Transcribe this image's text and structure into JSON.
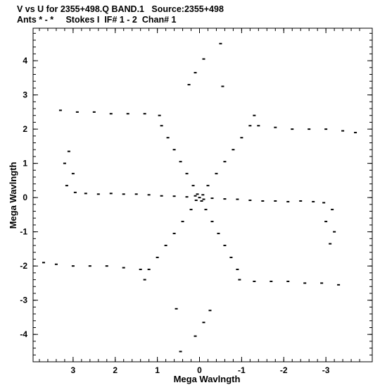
{
  "header": {
    "line1": "V vs U for 2355+498.Q BAND.1   Source:2355+498",
    "line2": "Ants * - *     Stokes I  IF# 1 - 2  Chan# 1"
  },
  "chart_data": {
    "type": "scatter",
    "title": "V vs U for 2355+498.Q BAND.1   Source:2355+498",
    "subtitle": "Ants * - *     Stokes I  IF# 1 - 2  Chan# 1",
    "xlabel": "Mega Wavlngth",
    "ylabel": "Mega Wavlngth",
    "xlim": [
      3.95,
      -4.1
    ],
    "ylim": [
      -4.8,
      4.95
    ],
    "x_reversed": true,
    "xticks": [
      3,
      2,
      1,
      0,
      -1,
      -2,
      -3
    ],
    "xticklabels": [
      "3",
      "2",
      "1",
      "0",
      "-1",
      "-2",
      "-3"
    ],
    "yticks": [
      4,
      3,
      2,
      1,
      0,
      -1,
      -2,
      -3,
      -4
    ],
    "yticklabels": [
      "4",
      "3",
      "2",
      "1",
      "0",
      "-1",
      "-2",
      "-3",
      "-4"
    ],
    "grid": false,
    "legend": "none",
    "marker_color": "#000000",
    "description_note": "uv-coverage: points lie along radial spokes and arcs; values read approximately from the plot",
    "series": [
      {
        "name": "",
        "points": [
          [
            0.0,
            0.0
          ],
          [
            0.05,
            0.1
          ],
          [
            -0.05,
            -0.1
          ],
          [
            0.1,
            0.05
          ],
          [
            -0.1,
            -0.05
          ],
          [
            0.08,
            -0.08
          ],
          [
            -0.08,
            0.08
          ],
          [
            0.3,
            0.02
          ],
          [
            0.6,
            0.04
          ],
          [
            0.9,
            0.05
          ],
          [
            1.2,
            0.08
          ],
          [
            1.5,
            0.1
          ],
          [
            1.8,
            0.1
          ],
          [
            2.1,
            0.12
          ],
          [
            2.4,
            0.1
          ],
          [
            2.7,
            0.12
          ],
          [
            2.95,
            0.15
          ],
          [
            -0.3,
            -0.02
          ],
          [
            -0.6,
            -0.04
          ],
          [
            -0.9,
            -0.05
          ],
          [
            -1.2,
            -0.08
          ],
          [
            -1.5,
            -0.1
          ],
          [
            -1.8,
            -0.1
          ],
          [
            -2.1,
            -0.12
          ],
          [
            -2.4,
            -0.1
          ],
          [
            -2.7,
            -0.12
          ],
          [
            -2.95,
            -0.15
          ],
          [
            0.15,
            0.35
          ],
          [
            0.3,
            0.7
          ],
          [
            0.45,
            1.05
          ],
          [
            0.6,
            1.4
          ],
          [
            0.75,
            1.75
          ],
          [
            0.9,
            2.1
          ],
          [
            0.95,
            2.4
          ],
          [
            -0.15,
            -0.35
          ],
          [
            -0.3,
            -0.7
          ],
          [
            -0.45,
            -1.05
          ],
          [
            -0.6,
            -1.4
          ],
          [
            -0.75,
            -1.75
          ],
          [
            -0.9,
            -2.1
          ],
          [
            -0.95,
            -2.4
          ],
          [
            -0.2,
            0.35
          ],
          [
            -0.4,
            0.7
          ],
          [
            -0.6,
            1.05
          ],
          [
            -0.8,
            1.4
          ],
          [
            -1.0,
            1.75
          ],
          [
            -1.2,
            2.1
          ],
          [
            -1.3,
            2.4
          ],
          [
            0.2,
            -0.35
          ],
          [
            0.4,
            -0.7
          ],
          [
            0.6,
            -1.05
          ],
          [
            0.8,
            -1.4
          ],
          [
            1.0,
            -1.75
          ],
          [
            1.2,
            -2.1
          ],
          [
            1.3,
            -2.4
          ],
          [
            0.1,
            3.65
          ],
          [
            -0.1,
            4.05
          ],
          [
            -0.5,
            4.5
          ],
          [
            0.25,
            3.3
          ],
          [
            -0.55,
            3.25
          ],
          [
            -0.1,
            -3.65
          ],
          [
            0.1,
            -4.05
          ],
          [
            0.45,
            -4.5
          ],
          [
            -0.25,
            -3.3
          ],
          [
            0.55,
            -3.25
          ],
          [
            3.3,
            2.55
          ],
          [
            2.9,
            2.5
          ],
          [
            2.5,
            2.5
          ],
          [
            2.1,
            2.45
          ],
          [
            1.7,
            2.45
          ],
          [
            1.3,
            2.45
          ],
          [
            -3.3,
            -2.55
          ],
          [
            -2.9,
            -2.5
          ],
          [
            -2.5,
            -2.5
          ],
          [
            -2.1,
            -2.45
          ],
          [
            -1.7,
            -2.45
          ],
          [
            -1.3,
            -2.45
          ],
          [
            -1.4,
            2.1
          ],
          [
            -1.8,
            2.05
          ],
          [
            -2.2,
            2.0
          ],
          [
            -2.6,
            2.0
          ],
          [
            -3.0,
            2.0
          ],
          [
            -3.4,
            1.95
          ],
          [
            -3.7,
            1.9
          ],
          [
            1.4,
            -2.1
          ],
          [
            1.8,
            -2.05
          ],
          [
            2.2,
            -2.0
          ],
          [
            2.6,
            -2.0
          ],
          [
            3.0,
            -2.0
          ],
          [
            3.4,
            -1.95
          ],
          [
            3.7,
            -1.9
          ],
          [
            3.1,
            1.35
          ],
          [
            3.2,
            1.0
          ],
          [
            3.0,
            0.7
          ],
          [
            3.15,
            0.35
          ],
          [
            -3.1,
            -1.35
          ],
          [
            -3.2,
            -1.0
          ],
          [
            -3.0,
            -0.7
          ],
          [
            -3.15,
            -0.35
          ]
        ]
      }
    ]
  }
}
